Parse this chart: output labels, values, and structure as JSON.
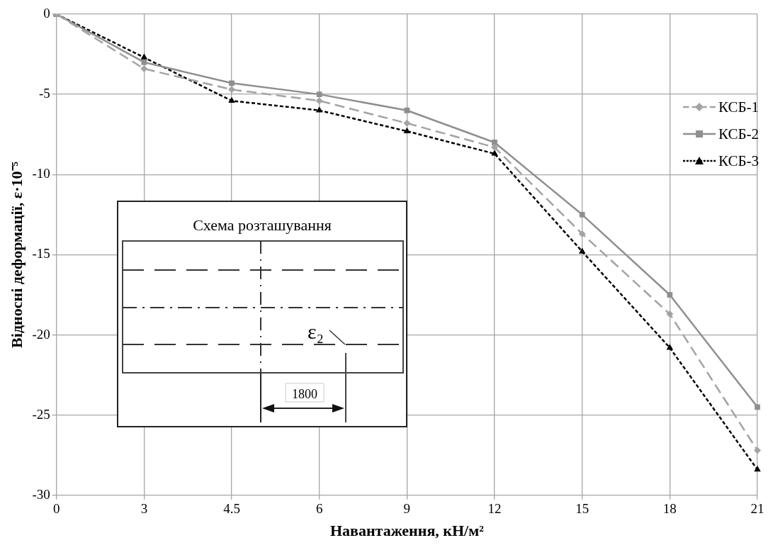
{
  "chart_data": {
    "type": "line",
    "xlabel": "Навантаження, кН/м²",
    "ylabel": "Відносні деформації, ε·10⁻⁵",
    "categories": [
      "0",
      "3",
      "4.5",
      "6",
      "9",
      "12",
      "15",
      "18",
      "21"
    ],
    "series": [
      {
        "name": "КСБ-1",
        "color": "#a3a3a3",
        "marker": "diamond",
        "line_style": "dashed",
        "values": [
          0,
          -3.4,
          -4.7,
          -5.4,
          -6.8,
          -8.3,
          -13.7,
          -18.7,
          -27.2
        ]
      },
      {
        "name": "КСБ-2",
        "color": "#8f8f8f",
        "marker": "square",
        "line_style": "solid",
        "values": [
          0,
          -3.0,
          -4.3,
          -5.0,
          -6.0,
          -8.0,
          -12.5,
          -17.5,
          -24.5
        ]
      },
      {
        "name": "КСБ-3",
        "color": "#000000",
        "marker": "triangle",
        "line_style": "dotted",
        "values": [
          0,
          -2.7,
          -5.4,
          -6.0,
          -7.3,
          -8.7,
          -14.8,
          -20.8,
          -28.4
        ]
      }
    ],
    "ylim": [
      -30,
      0
    ],
    "yticks": [
      -30,
      -25,
      -20,
      -15,
      -10,
      -5,
      0
    ],
    "grid": true,
    "legend": "top right",
    "annotations": [
      "Схема розташування",
      "ε₂",
      "1800"
    ]
  }
}
